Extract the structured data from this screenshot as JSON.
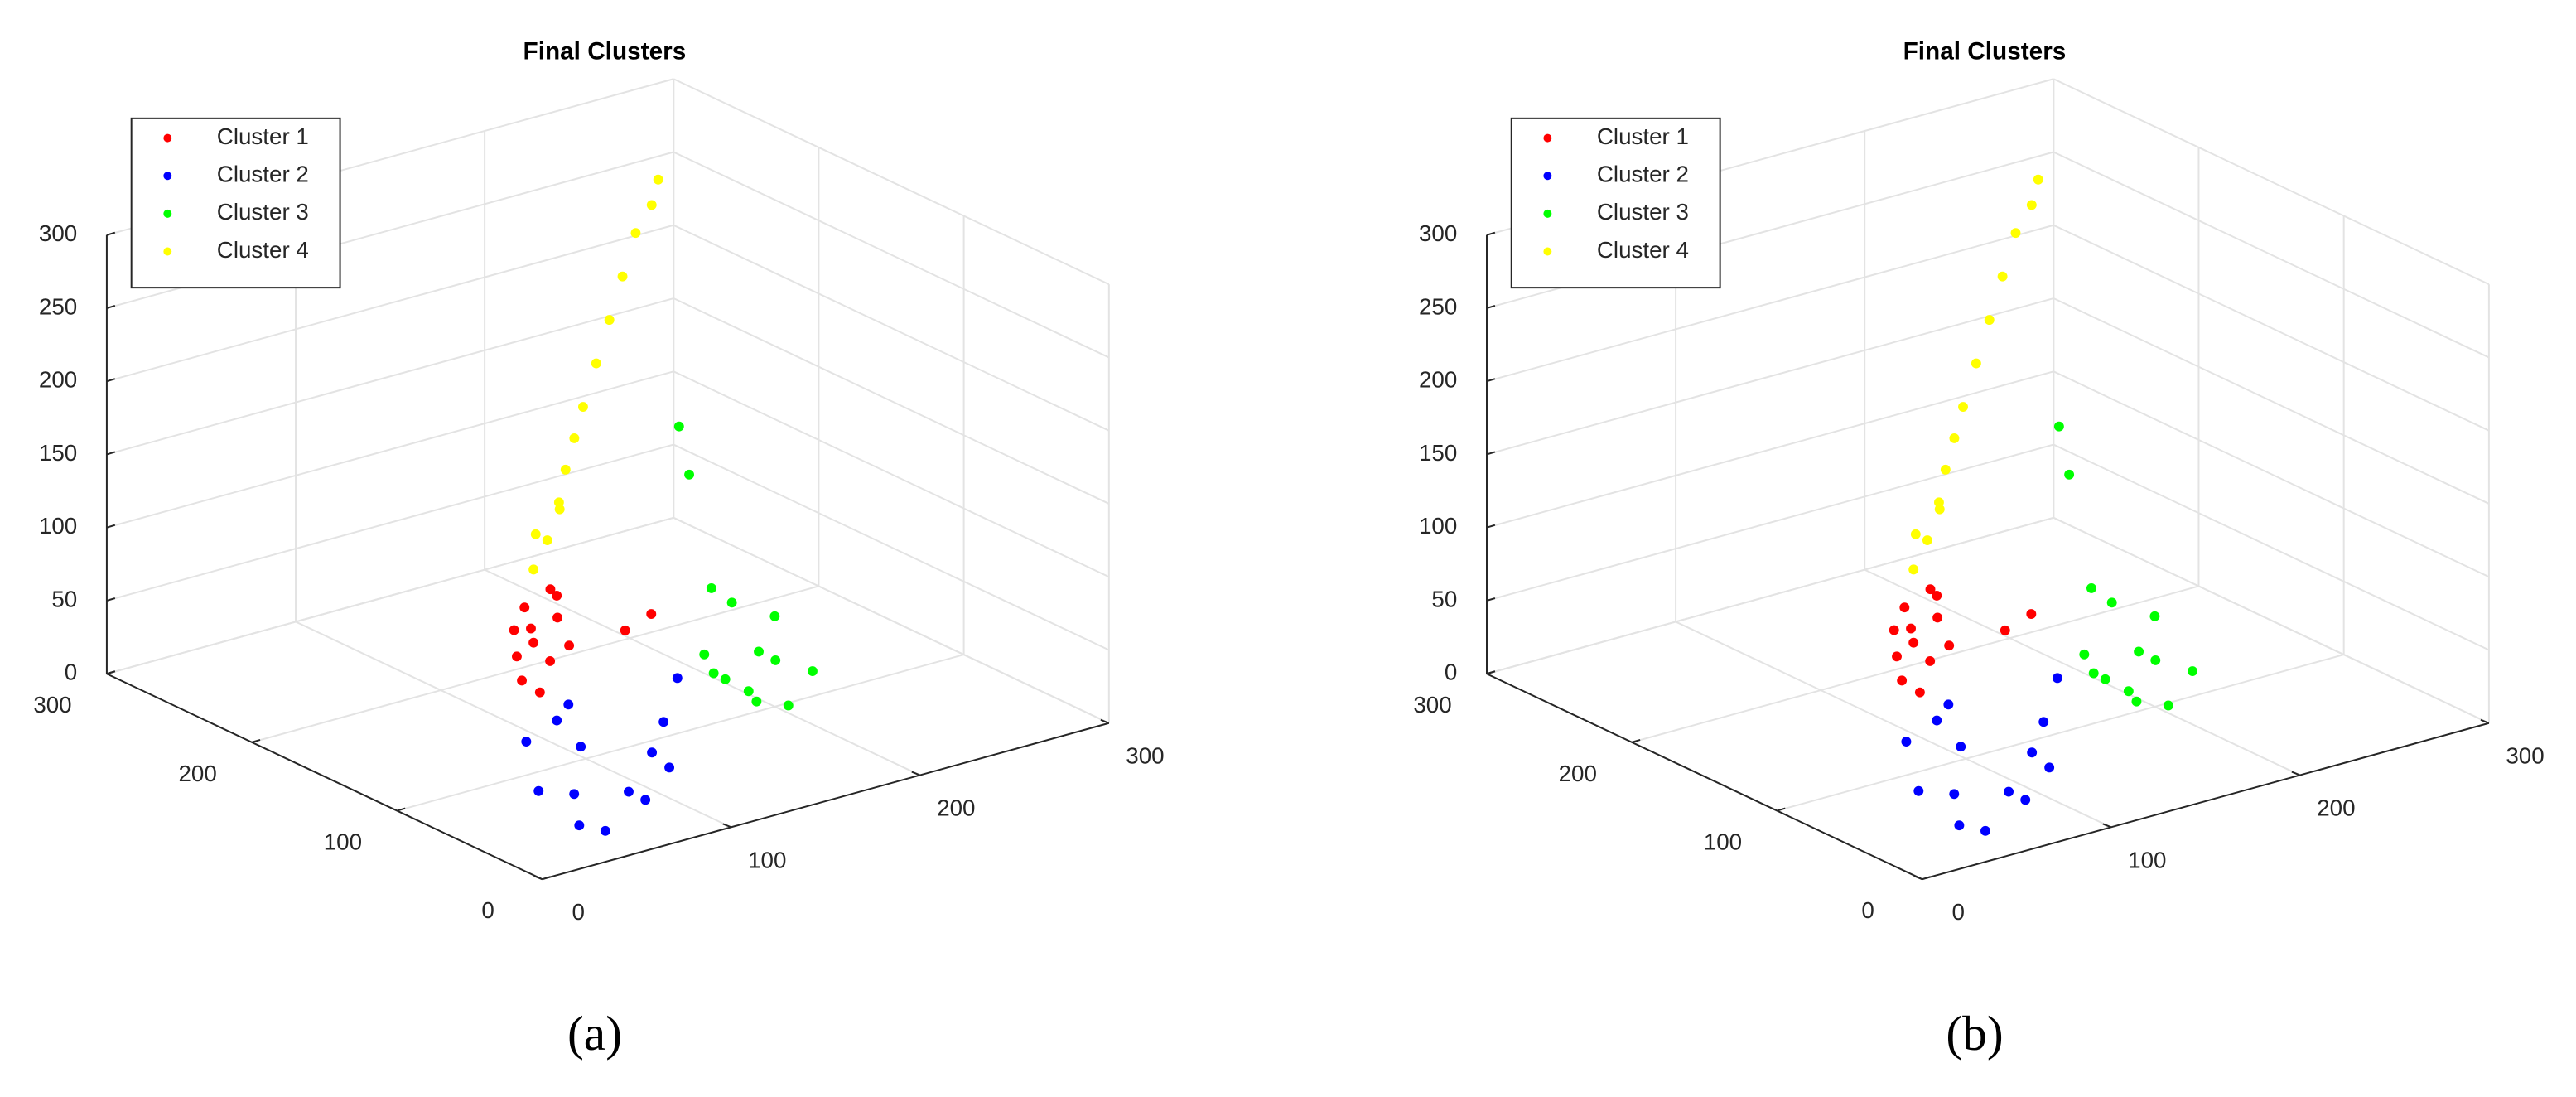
{
  "chart_data": [
    {
      "type": "scatter3d",
      "title": "Final Clusters",
      "caption": "(a)",
      "xlim": [
        0,
        300
      ],
      "ylim": [
        0,
        300
      ],
      "zlim": [
        0,
        300
      ],
      "xticks": [
        0,
        100,
        200,
        300
      ],
      "yticks": [
        0,
        100,
        200,
        300
      ],
      "zticks": [
        0,
        50,
        100,
        150,
        200,
        250,
        300
      ],
      "grid": true,
      "legend": "upper-left",
      "series": [
        {
          "name": "Cluster 1",
          "color": "#ff0000",
          "x": [
            20,
            30,
            35,
            25,
            40,
            28,
            22,
            38,
            32,
            45,
            26,
            34,
            90,
            100
          ],
          "y": [
            40,
            45,
            35,
            50,
            42,
            38,
            48,
            44,
            36,
            40,
            46,
            52,
            60,
            55
          ],
          "z": [
            110,
            130,
            150,
            120,
            160,
            100,
            140,
            115,
            170,
            125,
            155,
            135,
            110,
            120
          ]
        },
        {
          "name": "Cluster 2",
          "color": "#0000ff",
          "x": [
            40,
            55,
            70,
            30,
            85,
            60,
            45,
            95,
            25,
            65,
            50,
            75,
            35,
            110
          ],
          "y": [
            30,
            45,
            20,
            50,
            35,
            60,
            15,
            40,
            35,
            25,
            55,
            10,
            20,
            50
          ],
          "z": [
            30,
            50,
            20,
            60,
            40,
            70,
            10,
            55,
            35,
            25,
            65,
            45,
            15,
            75
          ]
        },
        {
          "name": "Cluster 3",
          "color": "#00ff00",
          "x": [
            120,
            130,
            140,
            110,
            150,
            125,
            135,
            145,
            115,
            160,
            128,
            138,
            170,
            180
          ],
          "y": [
            30,
            20,
            40,
            25,
            35,
            15,
            45,
            28,
            38,
            22,
            50,
            10,
            120,
            140
          ],
          "z": [
            80,
            100,
            60,
            90,
            110,
            70,
            120,
            85,
            95,
            75,
            130,
            65,
            160,
            180
          ]
        },
        {
          "name": "Cluster 4",
          "color": "#ffff00",
          "x": [
            30,
            35,
            40,
            45,
            55,
            70,
            90,
            110,
            140,
            170,
            200,
            230,
            250,
            265
          ],
          "y": [
            45,
            50,
            40,
            55,
            60,
            75,
            95,
            115,
            145,
            175,
            205,
            235,
            250,
            265
          ],
          "z": [
            180,
            200,
            220,
            190,
            210,
            220,
            225,
            230,
            235,
            240,
            245,
            250,
            255,
            260
          ]
        }
      ]
    },
    {
      "type": "scatter3d",
      "title": "Final Clusters",
      "caption": "(b)",
      "xlim": [
        0,
        300
      ],
      "ylim": [
        0,
        300
      ],
      "zlim": [
        0,
        300
      ],
      "xticks": [
        0,
        100,
        200,
        300
      ],
      "yticks": [
        0,
        100,
        200,
        300
      ],
      "zticks": [
        0,
        50,
        100,
        150,
        200,
        250,
        300
      ],
      "grid": true,
      "legend": "upper-left",
      "series": [
        {
          "name": "Cluster 1",
          "color": "#ff0000",
          "x": [
            20,
            30,
            35,
            25,
            40,
            28,
            22,
            38,
            32,
            45,
            26,
            34,
            90,
            100
          ],
          "y": [
            40,
            45,
            35,
            50,
            42,
            38,
            48,
            44,
            36,
            40,
            46,
            52,
            60,
            55
          ],
          "z": [
            110,
            130,
            150,
            120,
            160,
            100,
            140,
            115,
            170,
            125,
            155,
            135,
            110,
            120
          ]
        },
        {
          "name": "Cluster 2",
          "color": "#0000ff",
          "x": [
            40,
            55,
            70,
            30,
            85,
            60,
            45,
            95,
            25,
            65,
            50,
            75,
            35,
            110
          ],
          "y": [
            30,
            45,
            20,
            50,
            35,
            60,
            15,
            40,
            35,
            25,
            55,
            10,
            20,
            50
          ],
          "z": [
            30,
            50,
            20,
            60,
            40,
            70,
            10,
            55,
            35,
            25,
            65,
            45,
            15,
            75
          ]
        },
        {
          "name": "Cluster 3",
          "color": "#00ff00",
          "x": [
            120,
            130,
            140,
            110,
            150,
            125,
            135,
            145,
            115,
            160,
            128,
            138,
            170,
            180
          ],
          "y": [
            30,
            20,
            40,
            25,
            35,
            15,
            45,
            28,
            38,
            22,
            50,
            10,
            120,
            140
          ],
          "z": [
            80,
            100,
            60,
            90,
            110,
            70,
            120,
            85,
            95,
            75,
            130,
            65,
            160,
            180
          ]
        },
        {
          "name": "Cluster 4",
          "color": "#ffff00",
          "x": [
            30,
            35,
            40,
            45,
            55,
            70,
            90,
            110,
            140,
            170,
            200,
            230,
            250,
            265
          ],
          "y": [
            45,
            50,
            40,
            55,
            60,
            75,
            95,
            115,
            145,
            175,
            205,
            235,
            250,
            265
          ],
          "z": [
            180,
            200,
            220,
            190,
            210,
            220,
            225,
            230,
            235,
            240,
            245,
            250,
            255,
            260
          ]
        }
      ]
    }
  ]
}
